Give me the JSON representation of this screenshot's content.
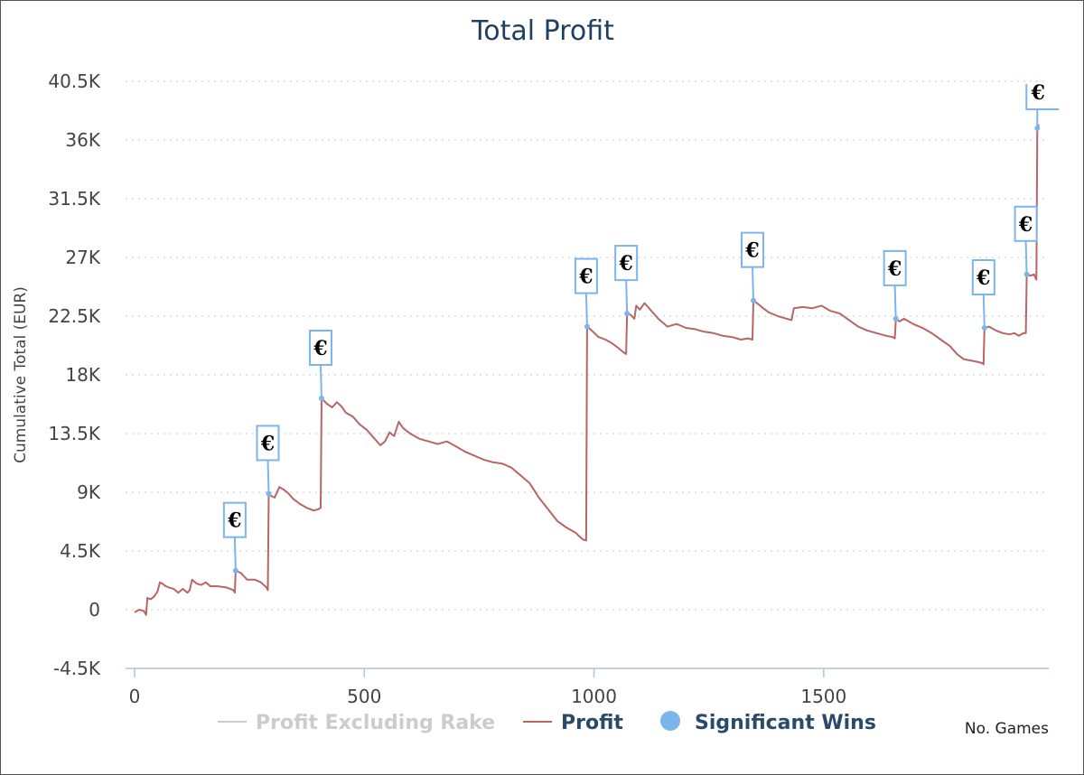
{
  "chart_data": {
    "type": "line",
    "title": "Total Profit",
    "xlabel": "No. Games",
    "ylabel": "Cumulative Total (EUR)",
    "xlim": [
      0,
      1990
    ],
    "ylim": [
      -4500,
      40500
    ],
    "x_ticks": [
      0,
      500,
      1000,
      1500
    ],
    "x_tick_labels": [
      "0",
      "500",
      "1000",
      "1500"
    ],
    "y_ticks": [
      -4500,
      0,
      4500,
      9000,
      13500,
      18000,
      22500,
      27000,
      31500,
      36000,
      40500
    ],
    "y_tick_labels": [
      "-4.5K",
      "0",
      "4.5K",
      "9K",
      "13.5K",
      "18K",
      "22.5K",
      "27K",
      "31.5K",
      "36K",
      "40.5K"
    ],
    "grid": "horizontal dotted",
    "legend_position": "bottom",
    "colors": {
      "profit": "#b86565",
      "profit_excluding_rake": "#cccccc",
      "significant_wins": "#7cb5ec",
      "title": "#1f3f5f",
      "legend_text": "#2a4a6a"
    },
    "series": [
      {
        "name": "Profit Excluding Rake",
        "hidden": true,
        "values": []
      },
      {
        "name": "Profit",
        "points": [
          [
            0,
            -200
          ],
          [
            10,
            0
          ],
          [
            20,
            -100
          ],
          [
            25,
            -400
          ],
          [
            28,
            900
          ],
          [
            35,
            800
          ],
          [
            42,
            1000
          ],
          [
            50,
            1400
          ],
          [
            55,
            2100
          ],
          [
            60,
            2000
          ],
          [
            68,
            1800
          ],
          [
            75,
            1700
          ],
          [
            85,
            1600
          ],
          [
            95,
            1300
          ],
          [
            105,
            1600
          ],
          [
            115,
            1300
          ],
          [
            120,
            1500
          ],
          [
            125,
            2300
          ],
          [
            135,
            2000
          ],
          [
            145,
            1900
          ],
          [
            155,
            2100
          ],
          [
            165,
            1800
          ],
          [
            180,
            1800
          ],
          [
            200,
            1700
          ],
          [
            215,
            1500
          ],
          [
            218,
            1300
          ],
          [
            220,
            3000
          ],
          [
            232,
            2800
          ],
          [
            245,
            2300
          ],
          [
            262,
            2300
          ],
          [
            275,
            2100
          ],
          [
            287,
            1700
          ],
          [
            290,
            1500
          ],
          [
            292,
            8900
          ],
          [
            298,
            8700
          ],
          [
            305,
            8600
          ],
          [
            315,
            9400
          ],
          [
            325,
            9200
          ],
          [
            335,
            8900
          ],
          [
            345,
            8500
          ],
          [
            360,
            8100
          ],
          [
            375,
            7800
          ],
          [
            390,
            7600
          ],
          [
            400,
            7700
          ],
          [
            405,
            7800
          ],
          [
            407,
            16200
          ],
          [
            418,
            15800
          ],
          [
            430,
            15500
          ],
          [
            440,
            15900
          ],
          [
            450,
            15600
          ],
          [
            460,
            15100
          ],
          [
            475,
            14800
          ],
          [
            490,
            14200
          ],
          [
            505,
            13800
          ],
          [
            520,
            13200
          ],
          [
            535,
            12600
          ],
          [
            545,
            12900
          ],
          [
            555,
            13600
          ],
          [
            565,
            13300
          ],
          [
            575,
            14400
          ],
          [
            585,
            13900
          ],
          [
            600,
            13500
          ],
          [
            620,
            13100
          ],
          [
            640,
            12900
          ],
          [
            660,
            12700
          ],
          [
            680,
            12900
          ],
          [
            700,
            12500
          ],
          [
            720,
            12100
          ],
          [
            740,
            11800
          ],
          [
            760,
            11500
          ],
          [
            780,
            11300
          ],
          [
            800,
            11200
          ],
          [
            820,
            10900
          ],
          [
            840,
            10300
          ],
          [
            860,
            9700
          ],
          [
            880,
            8600
          ],
          [
            900,
            7700
          ],
          [
            920,
            6800
          ],
          [
            940,
            6300
          ],
          [
            960,
            5900
          ],
          [
            975,
            5400
          ],
          [
            983,
            5300
          ],
          [
            985,
            21700
          ],
          [
            995,
            21400
          ],
          [
            1010,
            20900
          ],
          [
            1025,
            20700
          ],
          [
            1040,
            20400
          ],
          [
            1055,
            20000
          ],
          [
            1065,
            19700
          ],
          [
            1070,
            19600
          ],
          [
            1072,
            22700
          ],
          [
            1080,
            22600
          ],
          [
            1088,
            22300
          ],
          [
            1092,
            23300
          ],
          [
            1100,
            23000
          ],
          [
            1110,
            23500
          ],
          [
            1125,
            22900
          ],
          [
            1140,
            22300
          ],
          [
            1160,
            21700
          ],
          [
            1180,
            21900
          ],
          [
            1200,
            21600
          ],
          [
            1220,
            21500
          ],
          [
            1240,
            21300
          ],
          [
            1260,
            21200
          ],
          [
            1280,
            21000
          ],
          [
            1300,
            20900
          ],
          [
            1320,
            20700
          ],
          [
            1335,
            20800
          ],
          [
            1345,
            20700
          ],
          [
            1347,
            23700
          ],
          [
            1355,
            23500
          ],
          [
            1365,
            23200
          ],
          [
            1380,
            22800
          ],
          [
            1400,
            22500
          ],
          [
            1420,
            22300
          ],
          [
            1430,
            22200
          ],
          [
            1435,
            23100
          ],
          [
            1455,
            23200
          ],
          [
            1475,
            23100
          ],
          [
            1495,
            23300
          ],
          [
            1515,
            22900
          ],
          [
            1535,
            22700
          ],
          [
            1555,
            22200
          ],
          [
            1575,
            21700
          ],
          [
            1595,
            21400
          ],
          [
            1615,
            21200
          ],
          [
            1635,
            21000
          ],
          [
            1650,
            20900
          ],
          [
            1655,
            20800
          ],
          [
            1657,
            22300
          ],
          [
            1665,
            22100
          ],
          [
            1675,
            22300
          ],
          [
            1695,
            21900
          ],
          [
            1715,
            21600
          ],
          [
            1735,
            21200
          ],
          [
            1755,
            20700
          ],
          [
            1775,
            20200
          ],
          [
            1790,
            19600
          ],
          [
            1805,
            19200
          ],
          [
            1820,
            19100
          ],
          [
            1835,
            19000
          ],
          [
            1845,
            18900
          ],
          [
            1848,
            18800
          ],
          [
            1850,
            21600
          ],
          [
            1860,
            21700
          ],
          [
            1875,
            21400
          ],
          [
            1890,
            21200
          ],
          [
            1905,
            21100
          ],
          [
            1915,
            21200
          ],
          [
            1925,
            21000
          ],
          [
            1935,
            21200
          ],
          [
            1940,
            21200
          ],
          [
            1942,
            25700
          ],
          [
            1950,
            25600
          ],
          [
            1958,
            25700
          ],
          [
            1963,
            25300
          ],
          [
            1965,
            36900
          ],
          [
            1968,
            37200
          ]
        ]
      },
      {
        "name": "Significant Wins",
        "marker": "€",
        "points": [
          [
            220,
            3000
          ],
          [
            292,
            8900
          ],
          [
            407,
            16200
          ],
          [
            985,
            21700
          ],
          [
            1072,
            22700
          ],
          [
            1347,
            23700
          ],
          [
            1657,
            22300
          ],
          [
            1850,
            21600
          ],
          [
            1942,
            25700
          ],
          [
            1965,
            36900
          ]
        ]
      }
    ]
  }
}
